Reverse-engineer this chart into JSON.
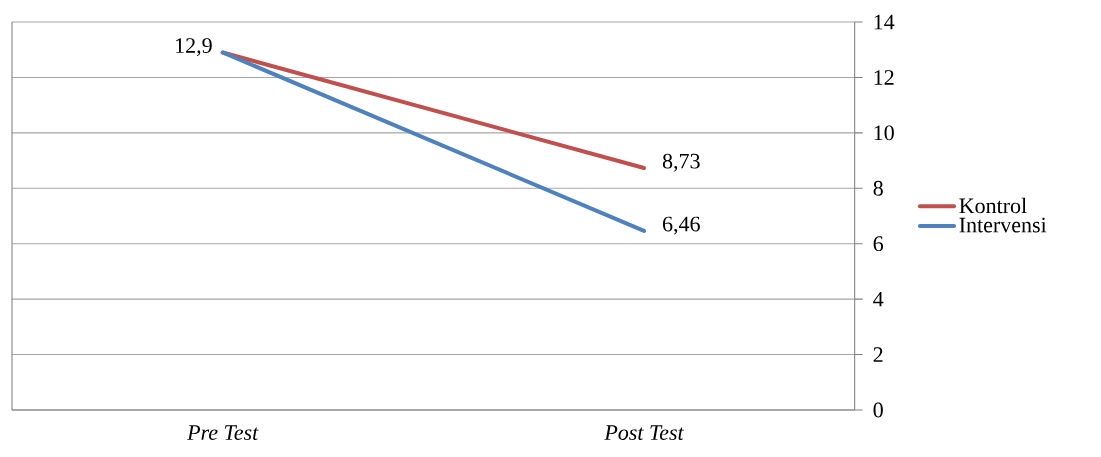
{
  "chart_data": {
    "type": "line",
    "categories": [
      "Pre Test",
      "Post Test"
    ],
    "series": [
      {
        "name": "Kontrol",
        "color": "#c0504d",
        "values": [
          12.9,
          8.73
        ],
        "value_labels": [
          "12,9",
          "8,73"
        ]
      },
      {
        "name": "Intervensi",
        "color": "#4f81bd",
        "values": [
          12.9,
          6.46
        ],
        "value_labels": [
          null,
          "6,46"
        ]
      }
    ],
    "ylim": [
      0,
      14
    ],
    "yticks": [
      0,
      2,
      4,
      6,
      8,
      10,
      12,
      14
    ],
    "grid": "y",
    "legend": "right",
    "marker": "none",
    "line_style": "solid"
  }
}
